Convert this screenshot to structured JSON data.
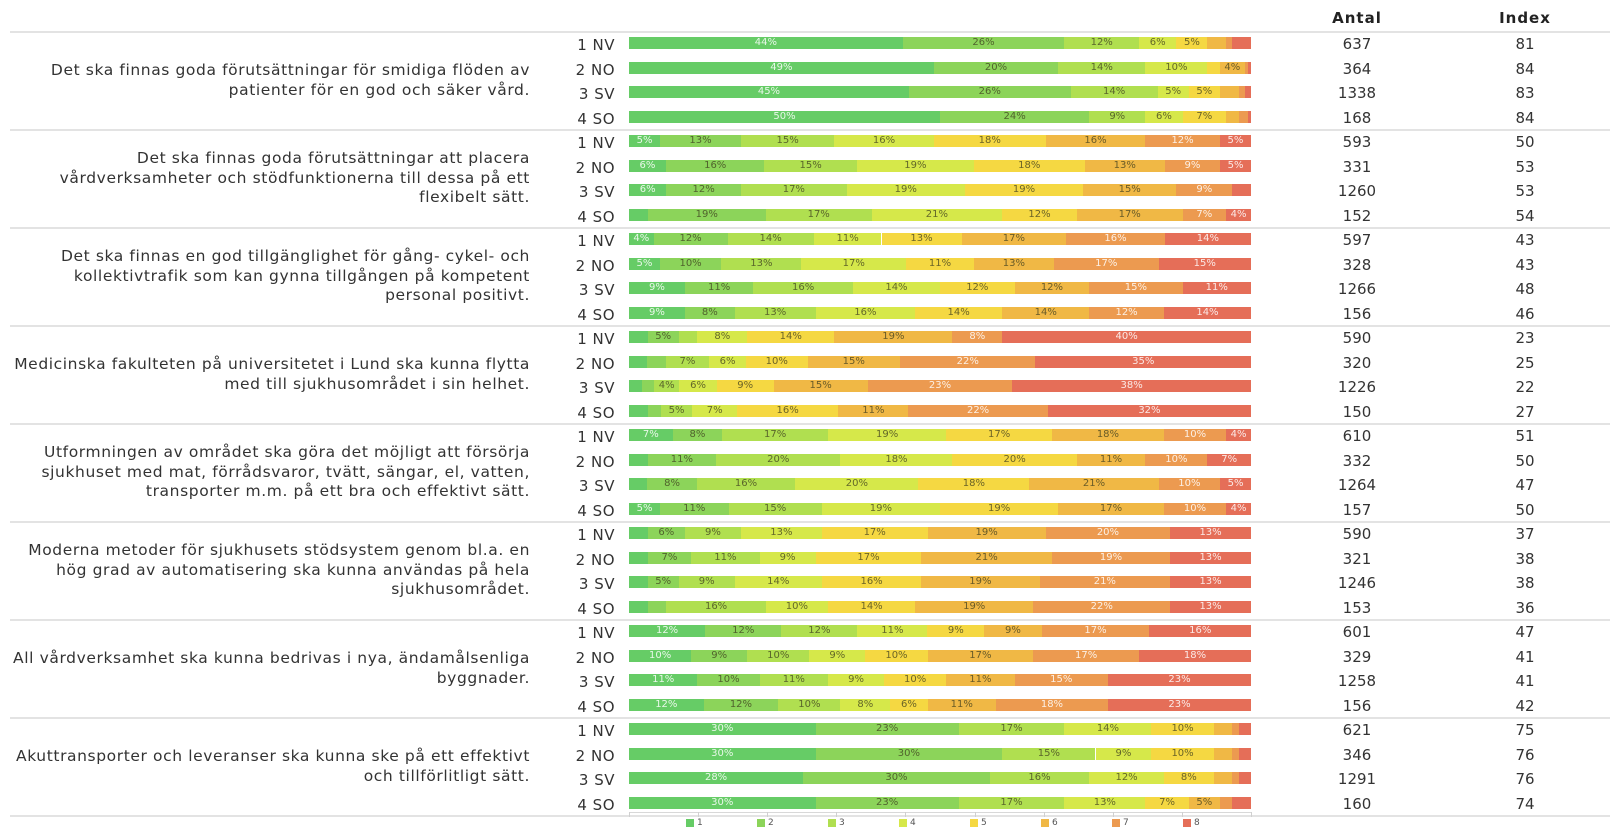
{
  "columns": {
    "antal": "Antal",
    "index": "Index"
  },
  "colors": [
    "#66cc66",
    "#8cd45a",
    "#b0df50",
    "#d6e84a",
    "#f5d842",
    "#f0b845",
    "#ec9a50",
    "#e56e58"
  ],
  "legend": [
    "1",
    "2",
    "3",
    "4",
    "5",
    "6",
    "7",
    "8"
  ],
  "chart_data": {
    "type": "bar",
    "stacked": true,
    "orientation": "horizontal",
    "normalized": true,
    "categories_legend": [
      "1",
      "2",
      "3",
      "4",
      "5",
      "6",
      "7",
      "8"
    ],
    "groups": [
      {
        "question": "Det ska finnas goda förutsättningar för smidiga flöden av patienter för en god och säker vård.",
        "rows": [
          {
            "region": "1 NV",
            "antal": "637",
            "index": "81",
            "values": [
              44,
              26,
              12,
              6,
              5,
              3,
              1,
              3
            ]
          },
          {
            "region": "2 NO",
            "antal": "364",
            "index": "84",
            "values": [
              49,
              20,
              14,
              10,
              2,
              4,
              0.5,
              0.5
            ]
          },
          {
            "region": "3 SV",
            "antal": "1338",
            "index": "83",
            "values": [
              45,
              26,
              14,
              5,
              5,
              3,
              1,
              1
            ]
          },
          {
            "region": "4 SO",
            "antal": "168",
            "index": "84",
            "values": [
              50,
              24,
              9,
              6,
              7,
              2,
              1.5,
              0.5
            ]
          }
        ]
      },
      {
        "question": "Det ska finnas goda förutsättningar att placera vårdverksamheter och stödfunktionerna till dessa på ett flexibelt sätt.",
        "rows": [
          {
            "region": "1 NV",
            "antal": "593",
            "index": "50",
            "values": [
              5,
              13,
              15,
              16,
              18,
              16,
              12,
              5
            ]
          },
          {
            "region": "2 NO",
            "antal": "331",
            "index": "53",
            "values": [
              6,
              16,
              15,
              19,
              18,
              13,
              9,
              5
            ]
          },
          {
            "region": "3 SV",
            "antal": "1260",
            "index": "53",
            "values": [
              6,
              12,
              17,
              19,
              19,
              15,
              9,
              3
            ]
          },
          {
            "region": "4 SO",
            "antal": "152",
            "index": "54",
            "values": [
              3,
              19,
              17,
              21,
              12,
              17,
              7,
              4
            ]
          }
        ]
      },
      {
        "question": "Det ska finnas en god tillgänglighet för gång- cykel- och kollektivtrafik som kan gynna tillgången på kompetent personal positivt.",
        "rows": [
          {
            "region": "1 NV",
            "antal": "597",
            "index": "43",
            "values": [
              4,
              12,
              14,
              11,
              13,
              17,
              16,
              14
            ]
          },
          {
            "region": "2 NO",
            "antal": "328",
            "index": "43",
            "values": [
              5,
              10,
              13,
              17,
              11,
              13,
              17,
              15
            ]
          },
          {
            "region": "3 SV",
            "antal": "1266",
            "index": "48",
            "values": [
              9,
              11,
              16,
              14,
              12,
              12,
              15,
              11
            ]
          },
          {
            "region": "4 SO",
            "antal": "156",
            "index": "46",
            "values": [
              9,
              8,
              13,
              16,
              14,
              14,
              12,
              14
            ]
          }
        ]
      },
      {
        "question": "Medicinska fakulteten på universitetet i Lund ska kunna flytta med till sjukhusområdet i sin helhet.",
        "rows": [
          {
            "region": "1 NV",
            "antal": "590",
            "index": "23",
            "values": [
              3,
              5,
              3,
              8,
              14,
              19,
              8,
              40
            ]
          },
          {
            "region": "2 NO",
            "antal": "320",
            "index": "25",
            "values": [
              3,
              3,
              7,
              6,
              10,
              15,
              22,
              35
            ]
          },
          {
            "region": "3 SV",
            "antal": "1226",
            "index": "22",
            "values": [
              2,
              2,
              4,
              6,
              9,
              15,
              23,
              38
            ]
          },
          {
            "region": "4 SO",
            "antal": "150",
            "index": "27",
            "values": [
              3,
              2,
              5,
              7,
              16,
              11,
              22,
              32
            ]
          }
        ]
      },
      {
        "question": "Utformningen av området ska göra det möjligt att försörja sjukhuset med mat, förrådsvaror, tvätt, sängar, el, vatten, transporter m.m. på ett bra och effektivt sätt.",
        "rows": [
          {
            "region": "1 NV",
            "antal": "610",
            "index": "51",
            "values": [
              7,
              8,
              17,
              19,
              17,
              18,
              10,
              4
            ]
          },
          {
            "region": "2 NO",
            "antal": "332",
            "index": "50",
            "values": [
              3,
              11,
              20,
              18,
              20,
              11,
              10,
              7
            ]
          },
          {
            "region": "3 SV",
            "antal": "1264",
            "index": "47",
            "values": [
              3,
              8,
              16,
              20,
              18,
              21,
              10,
              5
            ]
          },
          {
            "region": "4 SO",
            "antal": "157",
            "index": "50",
            "values": [
              5,
              11,
              15,
              19,
              19,
              17,
              10,
              4
            ]
          }
        ]
      },
      {
        "question": "Moderna metoder för sjukhusets stödsystem genom bl.a. en hög grad av automatisering ska kunna användas på hela sjukhusområdet.",
        "rows": [
          {
            "region": "1 NV",
            "antal": "590",
            "index": "37",
            "values": [
              3,
              6,
              9,
              13,
              17,
              19,
              20,
              13
            ]
          },
          {
            "region": "2 NO",
            "antal": "321",
            "index": "38",
            "values": [
              3,
              7,
              11,
              9,
              17,
              21,
              19,
              13
            ]
          },
          {
            "region": "3 SV",
            "antal": "1246",
            "index": "38",
            "values": [
              3,
              5,
              9,
              14,
              16,
              19,
              21,
              13
            ]
          },
          {
            "region": "4 SO",
            "antal": "153",
            "index": "36",
            "values": [
              3,
              3,
              16,
              10,
              14,
              19,
              22,
              13
            ]
          }
        ]
      },
      {
        "question": "All vårdverksamhet ska kunna bedrivas i nya, ändamålsenliga byggnader.",
        "rows": [
          {
            "region": "1 NV",
            "antal": "601",
            "index": "47",
            "values": [
              12,
              12,
              12,
              11,
              9,
              9,
              17,
              16
            ]
          },
          {
            "region": "2 NO",
            "antal": "329",
            "index": "41",
            "values": [
              10,
              9,
              10,
              9,
              10,
              17,
              17,
              18
            ]
          },
          {
            "region": "3 SV",
            "antal": "1258",
            "index": "41",
            "values": [
              11,
              10,
              11,
              9,
              10,
              11,
              15,
              23
            ]
          },
          {
            "region": "4 SO",
            "antal": "156",
            "index": "42",
            "values": [
              12,
              12,
              10,
              8,
              6,
              11,
              18,
              23
            ]
          }
        ]
      },
      {
        "question": "Akuttransporter och leveranser ska kunna ske på ett effektivt och tillförlitligt sätt.",
        "rows": [
          {
            "region": "1 NV",
            "antal": "621",
            "index": "75",
            "values": [
              30,
              23,
              17,
              14,
              10,
              3,
              1,
              2
            ]
          },
          {
            "region": "2 NO",
            "antal": "346",
            "index": "76",
            "values": [
              30,
              30,
              15,
              9,
              10,
              3,
              1,
              2
            ]
          },
          {
            "region": "3 SV",
            "antal": "1291",
            "index": "76",
            "values": [
              28,
              30,
              16,
              12,
              8,
              3,
              1,
              2
            ]
          },
          {
            "region": "4 SO",
            "antal": "160",
            "index": "74",
            "values": [
              30,
              23,
              17,
              13,
              7,
              5,
              2,
              3
            ]
          }
        ]
      }
    ]
  }
}
